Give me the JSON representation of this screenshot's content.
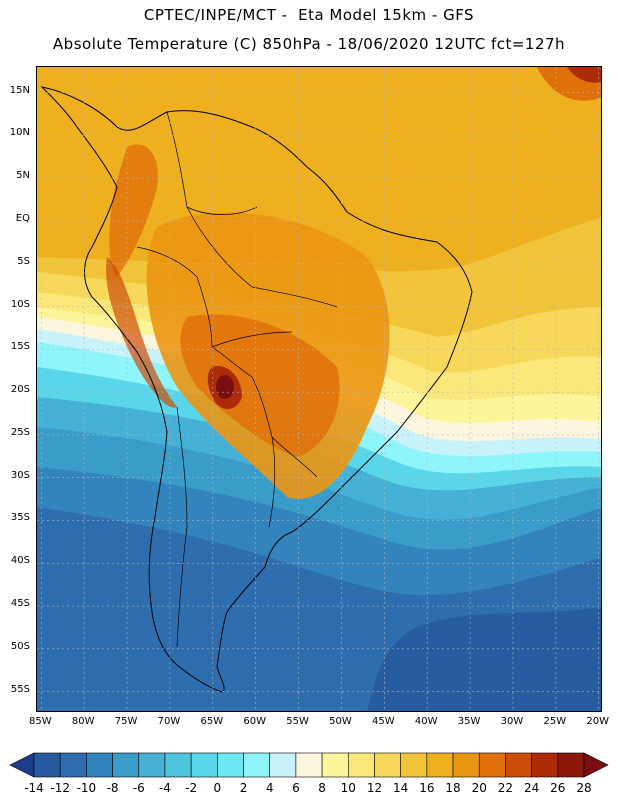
{
  "header": {
    "line1": "CPTEC/INPE/MCT -  Eta Model 15km - GFS",
    "line2": "Absolute Temperature (C) 850hPa - 18/06/2020 12UTC fct=127h"
  },
  "map": {
    "region": "South America",
    "variable": "Absolute Temperature (C) 850hPa",
    "lat_labels": [
      "15N",
      "10N",
      "5N",
      "EQ",
      "5S",
      "10S",
      "15S",
      "20S",
      "25S",
      "30S",
      "35S",
      "40S",
      "45S",
      "50S",
      "55S"
    ],
    "lat_values": [
      15,
      10,
      5,
      0,
      -5,
      -10,
      -15,
      -20,
      -25,
      -30,
      -35,
      -40,
      -45,
      -50,
      -55
    ],
    "lon_labels": [
      "85W",
      "80W",
      "75W",
      "70W",
      "65W",
      "60W",
      "55W",
      "50W",
      "45W",
      "40W",
      "35W",
      "30W",
      "25W",
      "20W"
    ],
    "lon_values": [
      -85,
      -80,
      -75,
      -70,
      -65,
      -60,
      -55,
      -50,
      -45,
      -40,
      -35,
      -30,
      -25,
      -20
    ],
    "lat_range": [
      -57.5,
      18
    ],
    "lon_range": [
      -85.5,
      -19.5
    ]
  },
  "colorbar": {
    "ticks": [
      "-14",
      "-12",
      "-10",
      "-8",
      "-6",
      "-4",
      "-2",
      "0",
      "2",
      "4",
      "6",
      "8",
      "10",
      "12",
      "14",
      "16",
      "18",
      "20",
      "22",
      "24",
      "26",
      "28"
    ],
    "colors": [
      "#1e3c8c",
      "#265a9e",
      "#2e6eaf",
      "#3384bd",
      "#3a9cc9",
      "#45b1d6",
      "#4fc6e0",
      "#5ad6ea",
      "#6ee8f2",
      "#8ef5fa",
      "#c9f3fb",
      "#fdf6de",
      "#fdf59a",
      "#fbe77a",
      "#f8d85a",
      "#f2c43a",
      "#eeb01e",
      "#eb9612",
      "#e0700a",
      "#cc4d07",
      "#ad2b07",
      "#8c1607",
      "#7a0d10"
    ]
  }
}
